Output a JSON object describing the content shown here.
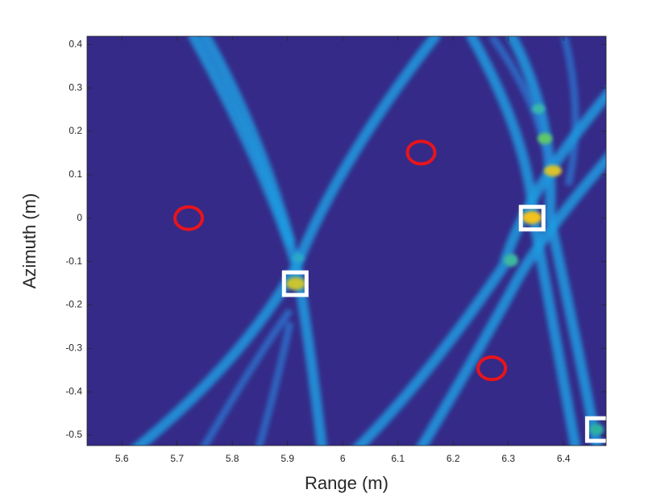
{
  "chart_data": {
    "type": "scatter",
    "xlabel": "Range (m)",
    "ylabel": "Azimuth (m)",
    "xlim": [
      5.537,
      6.477
    ],
    "ylim": [
      -0.524,
      0.419
    ],
    "xticks": [
      5.6,
      5.7,
      5.8,
      5.9,
      6,
      6.1,
      6.2,
      6.3,
      6.4
    ],
    "yticks": [
      0.4,
      0.3,
      0.2,
      0.1,
      0,
      -0.1,
      -0.2,
      -0.3,
      -0.4,
      -0.5
    ],
    "background": "#352a87",
    "series": [
      {
        "marker": "circle",
        "color": "#e8141c",
        "x": [
          5.721,
          6.142,
          6.27
        ],
        "y": [
          0,
          0.151,
          -0.346
        ]
      },
      {
        "marker": "square",
        "color": "#ffffff",
        "x": [
          5.914,
          6.343,
          6.463
        ],
        "y": [
          -0.151,
          0,
          -0.487
        ]
      }
    ]
  }
}
